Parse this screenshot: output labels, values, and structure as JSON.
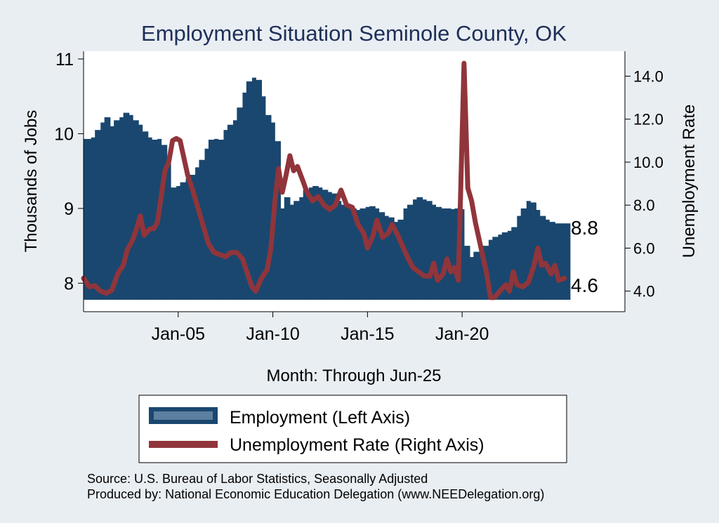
{
  "chart_data": {
    "type": "bar",
    "title": "Employment Situation Seminole  County, OK",
    "xlabel": "Month: Through Jun-25",
    "ylabel_left": "Thousands of Jobs",
    "ylabel_right": "Unemployment Rate",
    "ylim_left": [
      7.75,
      11.0
    ],
    "ylim_right": [
      3.5,
      14.8
    ],
    "xlim": [
      2000.0,
      2028.6
    ],
    "x_ticks": [
      {
        "value": 2005,
        "label": "Jan-05"
      },
      {
        "value": 2010,
        "label": "Jan-10"
      },
      {
        "value": 2015,
        "label": "Jan-15"
      },
      {
        "value": 2020,
        "label": "Jan-20"
      }
    ],
    "y_ticks_left": [
      {
        "value": 8,
        "label": "8"
      },
      {
        "value": 9,
        "label": "9"
      },
      {
        "value": 10,
        "label": "10"
      },
      {
        "value": 11,
        "label": "11"
      }
    ],
    "y_ticks_right": [
      {
        "value": 4,
        "label": "4.0"
      },
      {
        "value": 6,
        "label": "6.0"
      },
      {
        "value": 8,
        "label": "8.0"
      },
      {
        "value": 10,
        "label": "10.0"
      },
      {
        "value": 12,
        "label": "12.0"
      },
      {
        "value": 14,
        "label": "14.0"
      }
    ],
    "end_labels": {
      "employment": "8.8",
      "unemployment": "4.6"
    },
    "grid": false,
    "legend_position": "bottom",
    "series": [
      {
        "name": "Employment (Left Axis)",
        "axis": "left",
        "type": "area",
        "color": "#1a476f",
        "points": [
          [
            2000.0,
            9.93
          ],
          [
            2000.4,
            9.95
          ],
          [
            2000.6,
            10.05
          ],
          [
            2000.9,
            10.15
          ],
          [
            2001.1,
            10.22
          ],
          [
            2001.4,
            10.1
          ],
          [
            2001.6,
            10.18
          ],
          [
            2001.9,
            10.22
          ],
          [
            2002.1,
            10.28
          ],
          [
            2002.4,
            10.25
          ],
          [
            2002.6,
            10.18
          ],
          [
            2002.9,
            10.12
          ],
          [
            2003.1,
            10.03
          ],
          [
            2003.4,
            9.95
          ],
          [
            2003.6,
            9.92
          ],
          [
            2003.9,
            9.93
          ],
          [
            2004.1,
            9.85
          ],
          [
            2004.4,
            9.6
          ],
          [
            2004.6,
            9.28
          ],
          [
            2004.9,
            9.3
          ],
          [
            2005.1,
            9.35
          ],
          [
            2005.4,
            9.4
          ],
          [
            2005.6,
            9.45
          ],
          [
            2005.9,
            9.55
          ],
          [
            2006.1,
            9.65
          ],
          [
            2006.4,
            9.8
          ],
          [
            2006.6,
            9.92
          ],
          [
            2006.9,
            9.93
          ],
          [
            2007.1,
            9.92
          ],
          [
            2007.4,
            10.05
          ],
          [
            2007.6,
            10.12
          ],
          [
            2007.9,
            10.18
          ],
          [
            2008.1,
            10.35
          ],
          [
            2008.4,
            10.55
          ],
          [
            2008.6,
            10.7
          ],
          [
            2008.9,
            10.75
          ],
          [
            2009.1,
            10.72
          ],
          [
            2009.4,
            10.5
          ],
          [
            2009.6,
            10.25
          ],
          [
            2009.9,
            10.15
          ],
          [
            2010.1,
            9.9
          ],
          [
            2010.4,
            9.0
          ],
          [
            2010.6,
            9.15
          ],
          [
            2010.9,
            9.05
          ],
          [
            2011.1,
            9.1
          ],
          [
            2011.4,
            9.15
          ],
          [
            2011.6,
            9.25
          ],
          [
            2011.9,
            9.28
          ],
          [
            2012.1,
            9.3
          ],
          [
            2012.4,
            9.28
          ],
          [
            2012.6,
            9.25
          ],
          [
            2012.9,
            9.22
          ],
          [
            2013.1,
            9.2
          ],
          [
            2013.4,
            9.1
          ],
          [
            2013.6,
            9.05
          ],
          [
            2013.9,
            9.02
          ],
          [
            2014.1,
            9.0
          ],
          [
            2014.4,
            8.98
          ],
          [
            2014.6,
            9.0
          ],
          [
            2014.9,
            9.02
          ],
          [
            2015.1,
            9.03
          ],
          [
            2015.4,
            9.0
          ],
          [
            2015.6,
            8.95
          ],
          [
            2015.9,
            8.9
          ],
          [
            2016.1,
            8.88
          ],
          [
            2016.4,
            8.82
          ],
          [
            2016.6,
            8.85
          ],
          [
            2016.9,
            9.0
          ],
          [
            2017.1,
            9.05
          ],
          [
            2017.4,
            9.12
          ],
          [
            2017.6,
            9.15
          ],
          [
            2017.9,
            9.12
          ],
          [
            2018.1,
            9.1
          ],
          [
            2018.4,
            9.05
          ],
          [
            2018.6,
            9.02
          ],
          [
            2018.9,
            9.0
          ],
          [
            2019.1,
            9.0
          ],
          [
            2019.4,
            8.99
          ],
          [
            2019.6,
            9.0
          ],
          [
            2019.9,
            8.99
          ],
          [
            2020.1,
            8.5
          ],
          [
            2020.4,
            8.35
          ],
          [
            2020.6,
            8.42
          ],
          [
            2020.9,
            8.45
          ],
          [
            2021.1,
            8.5
          ],
          [
            2021.4,
            8.58
          ],
          [
            2021.6,
            8.62
          ],
          [
            2021.9,
            8.65
          ],
          [
            2022.1,
            8.68
          ],
          [
            2022.4,
            8.7
          ],
          [
            2022.6,
            8.75
          ],
          [
            2022.9,
            8.9
          ],
          [
            2023.1,
            9.0
          ],
          [
            2023.4,
            9.1
          ],
          [
            2023.6,
            9.08
          ],
          [
            2023.9,
            8.98
          ],
          [
            2024.1,
            8.9
          ],
          [
            2024.4,
            8.85
          ],
          [
            2024.6,
            8.82
          ],
          [
            2024.9,
            8.8
          ],
          [
            2025.1,
            8.8
          ],
          [
            2025.4,
            8.8
          ]
        ]
      },
      {
        "name": "Unemployment Rate (Right Axis)",
        "axis": "right",
        "type": "line",
        "color": "#90353b",
        "points": [
          [
            2000.0,
            4.6
          ],
          [
            2000.3,
            4.2
          ],
          [
            2000.6,
            4.25
          ],
          [
            2000.9,
            4.0
          ],
          [
            2001.2,
            3.9
          ],
          [
            2001.5,
            4.05
          ],
          [
            2001.8,
            4.8
          ],
          [
            2002.1,
            5.2
          ],
          [
            2002.3,
            5.9
          ],
          [
            2002.6,
            6.4
          ],
          [
            2002.8,
            6.9
          ],
          [
            2003.0,
            7.5
          ],
          [
            2003.2,
            6.6
          ],
          [
            2003.5,
            6.9
          ],
          [
            2003.7,
            6.9
          ],
          [
            2003.9,
            7.2
          ],
          [
            2004.1,
            8.4
          ],
          [
            2004.3,
            9.6
          ],
          [
            2004.5,
            10.0
          ],
          [
            2004.7,
            11.0
          ],
          [
            2004.9,
            11.1
          ],
          [
            2005.1,
            11.0
          ],
          [
            2005.3,
            10.2
          ],
          [
            2005.5,
            9.4
          ],
          [
            2005.8,
            8.6
          ],
          [
            2006.0,
            8.0
          ],
          [
            2006.3,
            7.1
          ],
          [
            2006.6,
            6.2
          ],
          [
            2006.9,
            5.8
          ],
          [
            2007.2,
            5.7
          ],
          [
            2007.5,
            5.6
          ],
          [
            2007.8,
            5.8
          ],
          [
            2008.1,
            5.8
          ],
          [
            2008.4,
            5.5
          ],
          [
            2008.7,
            4.7
          ],
          [
            2008.9,
            4.2
          ],
          [
            2009.1,
            4.0
          ],
          [
            2009.4,
            4.6
          ],
          [
            2009.7,
            5.0
          ],
          [
            2009.9,
            6.0
          ],
          [
            2010.1,
            8.1
          ],
          [
            2010.3,
            9.7
          ],
          [
            2010.5,
            8.6
          ],
          [
            2010.7,
            9.4
          ],
          [
            2010.9,
            10.3
          ],
          [
            2011.1,
            9.6
          ],
          [
            2011.3,
            9.8
          ],
          [
            2011.6,
            9.1
          ],
          [
            2011.8,
            8.6
          ],
          [
            2012.1,
            8.2
          ],
          [
            2012.4,
            8.4
          ],
          [
            2012.7,
            8.0
          ],
          [
            2013.0,
            7.8
          ],
          [
            2013.3,
            8.0
          ],
          [
            2013.6,
            8.7
          ],
          [
            2013.9,
            8.0
          ],
          [
            2014.2,
            7.9
          ],
          [
            2014.5,
            7.1
          ],
          [
            2014.8,
            6.7
          ],
          [
            2015.0,
            6.0
          ],
          [
            2015.3,
            6.6
          ],
          [
            2015.5,
            7.3
          ],
          [
            2015.8,
            6.5
          ],
          [
            2016.1,
            6.7
          ],
          [
            2016.3,
            7.1
          ],
          [
            2016.6,
            6.6
          ],
          [
            2016.9,
            6.0
          ],
          [
            2017.1,
            5.6
          ],
          [
            2017.4,
            5.1
          ],
          [
            2017.7,
            4.9
          ],
          [
            2018.0,
            4.7
          ],
          [
            2018.3,
            4.7
          ],
          [
            2018.5,
            5.3
          ],
          [
            2018.7,
            4.5
          ],
          [
            2019.0,
            4.8
          ],
          [
            2019.2,
            5.5
          ],
          [
            2019.4,
            4.9
          ],
          [
            2019.6,
            5.1
          ],
          [
            2019.8,
            4.5
          ],
          [
            2020.1,
            14.6
          ],
          [
            2020.3,
            8.8
          ],
          [
            2020.5,
            8.2
          ],
          [
            2020.7,
            7.2
          ],
          [
            2021.0,
            6.0
          ],
          [
            2021.3,
            4.8
          ],
          [
            2021.5,
            3.7
          ],
          [
            2021.7,
            3.7
          ],
          [
            2022.0,
            4.0
          ],
          [
            2022.3,
            4.3
          ],
          [
            2022.5,
            4.0
          ],
          [
            2022.7,
            4.9
          ],
          [
            2022.9,
            4.3
          ],
          [
            2023.2,
            4.2
          ],
          [
            2023.5,
            4.4
          ],
          [
            2023.8,
            5.2
          ],
          [
            2024.0,
            6.0
          ],
          [
            2024.2,
            5.2
          ],
          [
            2024.4,
            5.3
          ],
          [
            2024.7,
            4.8
          ],
          [
            2024.9,
            5.2
          ],
          [
            2025.1,
            4.5
          ],
          [
            2025.4,
            4.6
          ]
        ]
      }
    ],
    "source_lines": [
      "Source: U.S. Bureau of Labor Statistics, Seasonally Adjusted",
      "Produced by: National Economic Education Delegation (www.NEEDelegation.org)"
    ]
  }
}
